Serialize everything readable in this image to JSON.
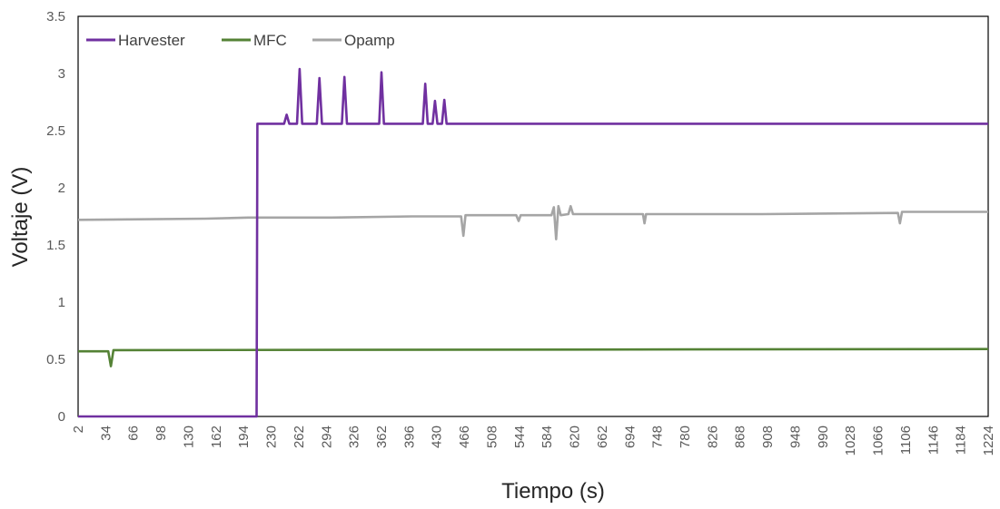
{
  "chart_data": {
    "type": "line",
    "title": "",
    "xlabel": "Tiempo (s)",
    "ylabel": "Voltaje (V)",
    "ylim": [
      0,
      3.5
    ],
    "y_ticks": [
      "0",
      "0.5",
      "1",
      "1.5",
      "2",
      "2.5",
      "3",
      "3.5"
    ],
    "y_tick_values": [
      0,
      0.5,
      1,
      1.5,
      2,
      2.5,
      3,
      3.5
    ],
    "x_ticks": [
      "2",
      "34",
      "66",
      "98",
      "130",
      "162",
      "194",
      "230",
      "262",
      "294",
      "326",
      "362",
      "396",
      "430",
      "466",
      "508",
      "544",
      "584",
      "620",
      "662",
      "694",
      "748",
      "780",
      "826",
      "868",
      "908",
      "948",
      "990",
      "1028",
      "1066",
      "1106",
      "1146",
      "1184",
      "1224"
    ],
    "x_tick_values": [
      2,
      34,
      66,
      98,
      130,
      162,
      194,
      230,
      262,
      294,
      326,
      362,
      396,
      430,
      466,
      508,
      544,
      584,
      620,
      662,
      694,
      748,
      780,
      826,
      868,
      908,
      948,
      990,
      1028,
      1066,
      1106,
      1146,
      1184,
      1224
    ],
    "grid": false,
    "legend_position": "top-left",
    "series": [
      {
        "name": "Harvester",
        "color": "#7030A0",
        "x": [
          2,
          211,
          212,
          213,
          245,
          248,
          251,
          260,
          263,
          266,
          283,
          286,
          289,
          312,
          315,
          318,
          359,
          362,
          365,
          413,
          416,
          419,
          425,
          428,
          431,
          437,
          440,
          443,
          1224
        ],
        "y": [
          0,
          0,
          2.56,
          2.56,
          2.56,
          2.64,
          2.56,
          2.56,
          3.04,
          2.56,
          2.56,
          2.96,
          2.56,
          2.56,
          2.97,
          2.56,
          2.56,
          3.01,
          2.56,
          2.56,
          2.91,
          2.56,
          2.56,
          2.76,
          2.56,
          2.56,
          2.77,
          2.56,
          2.56
        ]
      },
      {
        "name": "MFC",
        "color": "#548235",
        "x": [
          2,
          37,
          40,
          43,
          46,
          1224
        ],
        "y": [
          0.57,
          0.57,
          0.44,
          0.58,
          0.58,
          0.59
        ]
      },
      {
        "name": "Opamp",
        "color": "#A5A5A5",
        "x": [
          2,
          150,
          200,
          300,
          400,
          450,
          462,
          465,
          468,
          540,
          543,
          546,
          590,
          593,
          596,
          599,
          602,
          612,
          615,
          618,
          720,
          723,
          726,
          900,
          1095,
          1098,
          1101,
          1224
        ],
        "y": [
          1.72,
          1.73,
          1.74,
          1.74,
          1.75,
          1.75,
          1.75,
          1.58,
          1.76,
          1.76,
          1.71,
          1.76,
          1.76,
          1.83,
          1.55,
          1.84,
          1.76,
          1.77,
          1.84,
          1.77,
          1.77,
          1.69,
          1.77,
          1.77,
          1.78,
          1.69,
          1.79,
          1.79
        ]
      }
    ]
  }
}
